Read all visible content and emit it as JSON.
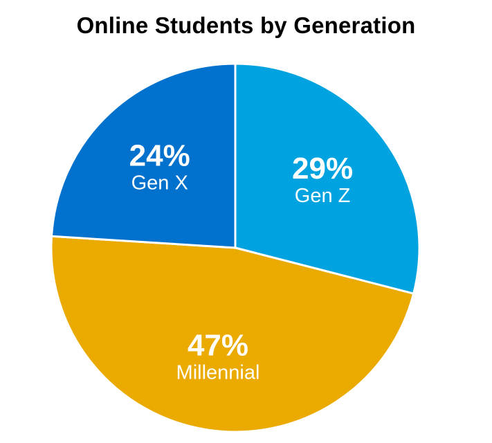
{
  "chart_data": {
    "type": "pie",
    "title": "Online Students by Generation",
    "categories": [
      "Gen Z",
      "Millennial",
      "Gen X"
    ],
    "values": [
      29,
      47,
      24
    ],
    "value_labels": [
      "29%",
      "47%",
      "24%"
    ],
    "colors": [
      "#00A3E0",
      "#EAAA00",
      "#0072CE"
    ],
    "unit": "%",
    "start_angle": "12 o'clock",
    "direction": "clockwise",
    "legend": "none"
  }
}
